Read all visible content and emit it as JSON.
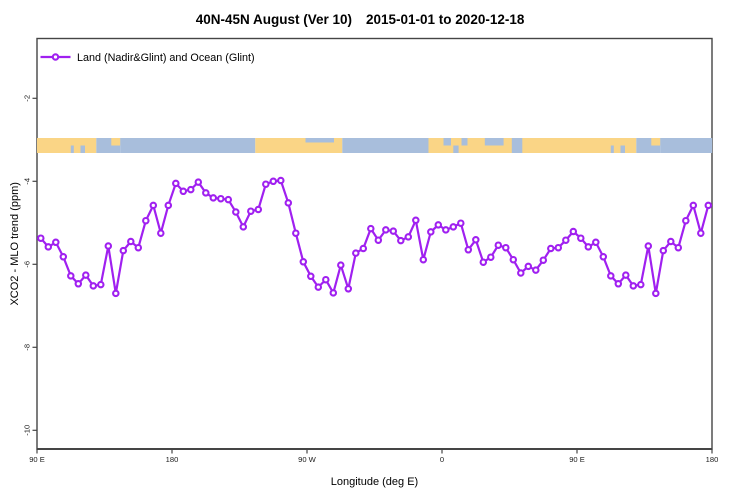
{
  "title_left": "40N-45N August (Ver 10)",
  "title_right": "2015-01-01 to 2020-12-18",
  "legend": {
    "label": "Land (Nadir&Glint) and Ocean (Glint)"
  },
  "axes": {
    "x": {
      "label": "Longitude (deg E)",
      "tick_labels": [
        "90 E",
        "180",
        "90 W",
        "0",
        "90 E",
        "180"
      ]
    },
    "y": {
      "label": "XCO2 - MLO trend (ppm)",
      "tick_labels": [
        "-2",
        "-4",
        "-6",
        "-8",
        "-10"
      ]
    }
  },
  "colors": {
    "series": "#A020F0",
    "land": "#FAD586",
    "ocean": "#A8BEDC",
    "frame": "#454545"
  },
  "chart_data": {
    "type": "line",
    "title": "40N-45N August (Ver 10)   2015-01-01 to 2020-12-18",
    "xlabel": "Longitude (deg E)",
    "ylabel": "XCO2 - MLO trend (ppm)",
    "xlim": [
      90,
      540
    ],
    "ylim": [
      -10.45,
      -0.55
    ],
    "x_tick_positions": [
      90,
      180,
      270,
      360,
      450,
      540
    ],
    "x_tick_labels": [
      "90 E",
      "180",
      "90 W",
      "0",
      "90 E",
      "180"
    ],
    "y_tick_positions": [
      -2,
      -4,
      -6,
      -8,
      -10
    ],
    "grid": false,
    "legend_position": "top-left inside",
    "marker": "open-circle",
    "note": "longitude axis wraps: data from 90E repeats after 360; series sampled every 5 degrees",
    "series": [
      {
        "name": "Land (Nadir&Glint) and Ocean (Glint)",
        "x": [
          92.5,
          97.5,
          102.5,
          107.5,
          112.5,
          117.5,
          122.5,
          127.5,
          132.5,
          137.5,
          142.5,
          147.5,
          152.5,
          157.5,
          162.5,
          167.5,
          172.5,
          177.5,
          182.5,
          187.5,
          192.5,
          197.5,
          202.5,
          207.5,
          212.5,
          217.5,
          222.5,
          227.5,
          232.5,
          237.5,
          242.5,
          247.5,
          252.5,
          257.5,
          262.5,
          267.5,
          272.5,
          277.5,
          282.5,
          287.5,
          292.5,
          297.5,
          302.5,
          307.5,
          312.5,
          317.5,
          322.5,
          327.5,
          332.5,
          337.5,
          342.5,
          347.5,
          352.5,
          357.5,
          362.5,
          367.5,
          372.5,
          377.5,
          382.5,
          387.5,
          392.5,
          397.5,
          402.5,
          407.5,
          412.5,
          417.5,
          422.5,
          427.5,
          432.5,
          437.5,
          442.5,
          447.5,
          452.5,
          457.5,
          462.5,
          467.5,
          472.5,
          477.5,
          482.5,
          487.5,
          492.5,
          497.5,
          502.5,
          507.5,
          512.5,
          517.5,
          522.5,
          527.5,
          532.5,
          537.5
        ],
        "y": [
          -5.37,
          -5.58,
          -5.47,
          -5.82,
          -6.28,
          -6.47,
          -6.26,
          -6.52,
          -6.49,
          -5.56,
          -6.7,
          -5.67,
          -5.45,
          -5.6,
          -4.95,
          -4.58,
          -5.25,
          -4.58,
          -4.05,
          -4.24,
          -4.2,
          -4.02,
          -4.28,
          -4.4,
          -4.42,
          -4.44,
          -4.74,
          -5.1,
          -4.72,
          -4.68,
          -4.07,
          -4.0,
          -3.98,
          -4.52,
          -5.25,
          -5.94,
          -6.29,
          -6.55,
          -6.37,
          -6.69,
          -6.02,
          -6.59,
          -5.73,
          -5.62,
          -5.14,
          -5.42,
          -5.17,
          -5.2,
          -5.43,
          -5.34,
          -4.94,
          -5.89,
          -5.22,
          -5.05,
          -5.17,
          -5.1,
          -5.01,
          -5.65,
          -5.41,
          -5.95,
          -5.83,
          -5.54,
          -5.6,
          -5.89,
          -6.21,
          -6.05,
          -6.14,
          -5.9,
          -5.62,
          -5.6,
          -5.42,
          -5.21,
          -5.37,
          -5.58,
          -5.47,
          -5.82,
          -6.28,
          -6.47,
          -6.26,
          -6.52,
          -6.49,
          -5.56,
          -6.7,
          -5.67,
          -5.45,
          -5.6,
          -4.95,
          -4.58,
          -5.25,
          -4.58
        ]
      }
    ],
    "land_ocean_band": {
      "value_top": -2.96,
      "value_bottom": -3.32,
      "segments": [
        {
          "from": 90,
          "to": 129.5,
          "surface": "land",
          "part": "full"
        },
        {
          "from": 112.5,
          "to": 114.5,
          "surface": "ocean",
          "part": "bottom"
        },
        {
          "from": 119,
          "to": 122,
          "surface": "ocean",
          "part": "bottom"
        },
        {
          "from": 129.5,
          "to": 145.5,
          "surface": "ocean",
          "part": "full"
        },
        {
          "from": 139.5,
          "to": 145.5,
          "surface": "land",
          "part": "top"
        },
        {
          "from": 145.5,
          "to": 235.5,
          "surface": "ocean",
          "part": "full"
        },
        {
          "from": 235.5,
          "to": 293.5,
          "surface": "land",
          "part": "full"
        },
        {
          "from": 269,
          "to": 288,
          "surface": "ocean",
          "part": "thin-top"
        },
        {
          "from": 293.5,
          "to": 351,
          "surface": "ocean",
          "part": "full"
        },
        {
          "from": 351,
          "to": 489.5,
          "surface": "land",
          "part": "full"
        },
        {
          "from": 361,
          "to": 366,
          "surface": "ocean",
          "part": "top"
        },
        {
          "from": 367.5,
          "to": 371,
          "surface": "ocean",
          "part": "bottom"
        },
        {
          "from": 373,
          "to": 377,
          "surface": "ocean",
          "part": "top"
        },
        {
          "from": 388.5,
          "to": 401,
          "surface": "ocean",
          "part": "top"
        },
        {
          "from": 406.5,
          "to": 413.5,
          "surface": "ocean",
          "part": "full"
        },
        {
          "from": 472.5,
          "to": 474.5,
          "surface": "ocean",
          "part": "bottom"
        },
        {
          "from": 479,
          "to": 482,
          "surface": "ocean",
          "part": "bottom"
        },
        {
          "from": 489.5,
          "to": 505.5,
          "surface": "ocean",
          "part": "full"
        },
        {
          "from": 499.5,
          "to": 505.5,
          "surface": "land",
          "part": "top"
        },
        {
          "from": 505.5,
          "to": 540,
          "surface": "ocean",
          "part": "full"
        }
      ]
    }
  }
}
